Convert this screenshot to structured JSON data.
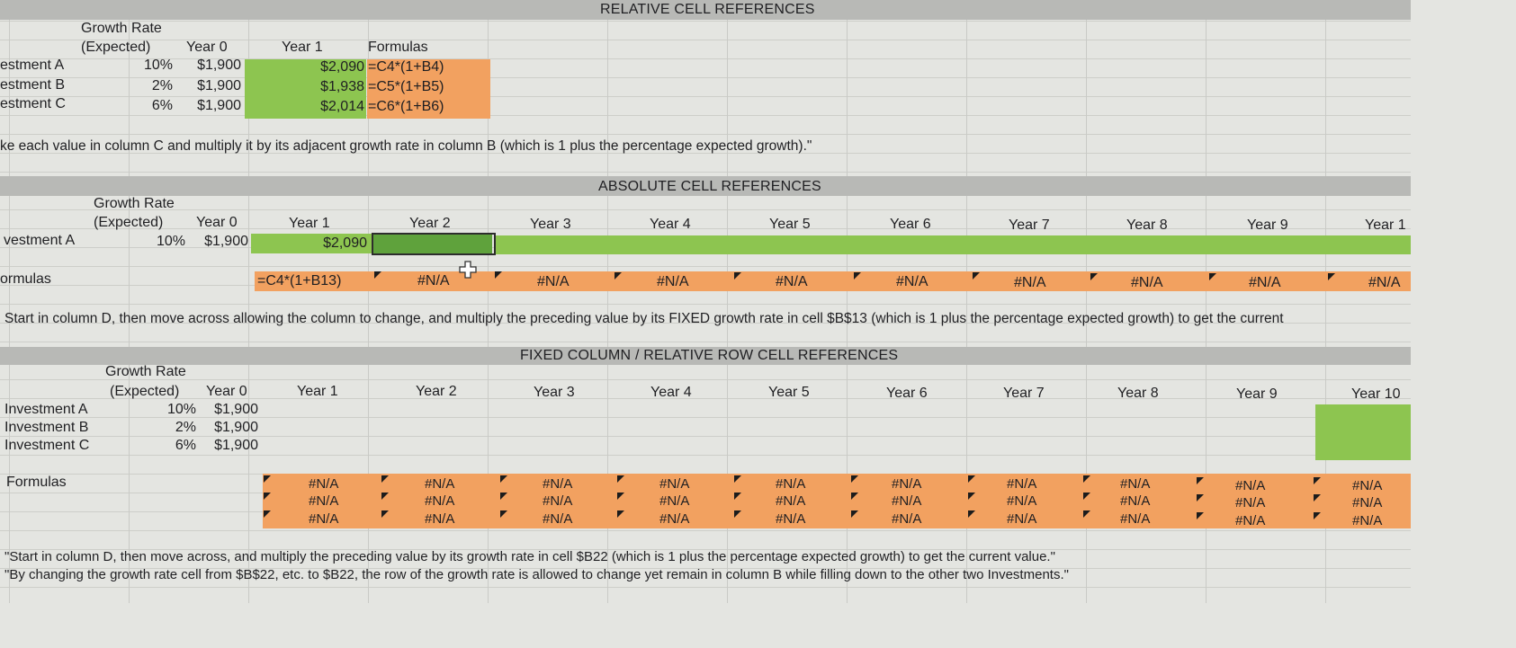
{
  "sec1": {
    "title": "RELATIVE CELL REFERENCES",
    "hdr_growth1": "Growth Rate",
    "hdr_growth2": "(Expected)",
    "hdr_y0": "Year 0",
    "hdr_y1": "Year 1",
    "hdr_formulas": "Formulas",
    "rows": [
      {
        "label": "estment A",
        "rate": "10%",
        "y0": "$1,900",
        "y1": "$2,090",
        "formula": "=C4*(1+B4)"
      },
      {
        "label": "estment B",
        "rate": "2%",
        "y0": "$1,900",
        "y1": "$1,938",
        "formula": "=C5*(1+B5)"
      },
      {
        "label": "estment C",
        "rate": "6%",
        "y0": "$1,900",
        "y1": "$2,014",
        "formula": "=C6*(1+B6)"
      }
    ],
    "note": "ke each value in column C and multiply it by its adjacent growth rate in column B (which is 1 plus the percentage expected growth).\""
  },
  "sec2": {
    "title": "ABSOLUTE CELL REFERENCES",
    "hdr_growth1": "Growth Rate",
    "hdr_growth2": "(Expected)",
    "years": [
      "Year 0",
      "Year 1",
      "Year 2",
      "Year 3",
      "Year 4",
      "Year 5",
      "Year 6",
      "Year 7",
      "Year 8",
      "Year 9",
      "Year 1"
    ],
    "row_label": "vestment A",
    "rate": "10%",
    "y0": "$1,900",
    "y1": "$2,090",
    "formulas_label": "ormulas",
    "formula_y1": "=C4*(1+B13)",
    "na": [
      "#N/A",
      "#N/A",
      "#N/A",
      "#N/A",
      "#N/A",
      "#N/A",
      "#N/A",
      "#N/A",
      "#N/A"
    ],
    "note": "Start in column D, then move across allowing the column to change, and multiply the preceding value by its FIXED growth rate in cell $B$13 (which is 1 plus the percentage expected growth) to get the current"
  },
  "sec3": {
    "title": "FIXED COLUMN / RELATIVE ROW CELL REFERENCES",
    "hdr_growth1": "Growth Rate",
    "hdr_growth2": "(Expected)",
    "years": [
      "Year 0",
      "Year 1",
      "Year 2",
      "Year 3",
      "Year 4",
      "Year 5",
      "Year 6",
      "Year 7",
      "Year 8",
      "Year 9",
      "Year 10"
    ],
    "rows": [
      {
        "label": "Investment A",
        "rate": "10%",
        "y0": "$1,900"
      },
      {
        "label": "Investment B",
        "rate": "2%",
        "y0": "$1,900"
      },
      {
        "label": "Investment C",
        "rate": "6%",
        "y0": "$1,900"
      }
    ],
    "formulas_label": "Formulas",
    "na": "#N/A",
    "note1": "\"Start in column D, then move across, and multiply the preceding value by its growth rate in cell $B22 (which is 1 plus the percentage expected growth) to get the current value.\"",
    "note2": "\"By changing the growth rate cell from $B$22, etc. to $B22, the row of the growth rate is allowed to change yet remain in column B while filling down to the other two Investments.\""
  },
  "colors": {
    "green": "#8dc550",
    "orange": "#f2a160",
    "band": "#b8b9b6"
  }
}
